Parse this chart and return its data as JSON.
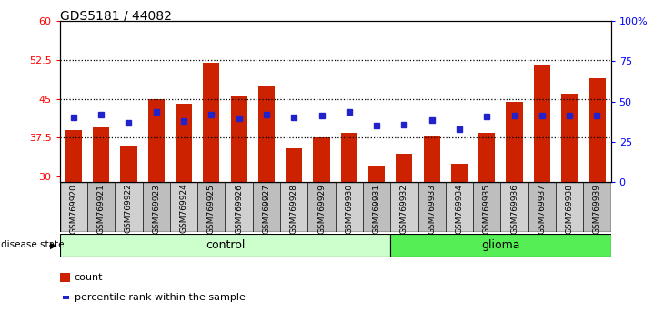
{
  "title": "GDS5181 / 44082",
  "samples": [
    "GSM769920",
    "GSM769921",
    "GSM769922",
    "GSM769923",
    "GSM769924",
    "GSM769925",
    "GSM769926",
    "GSM769927",
    "GSM769928",
    "GSM769929",
    "GSM769930",
    "GSM769931",
    "GSM769932",
    "GSM769933",
    "GSM769934",
    "GSM769935",
    "GSM769936",
    "GSM769937",
    "GSM769938",
    "GSM769939"
  ],
  "bar_heights": [
    39.0,
    39.5,
    36.0,
    45.0,
    44.0,
    52.0,
    45.5,
    47.5,
    35.5,
    37.5,
    38.5,
    32.0,
    34.5,
    38.0,
    32.5,
    38.5,
    44.5,
    51.5,
    46.0,
    49.0
  ],
  "percentile_values": [
    40.0,
    42.0,
    37.0,
    43.5,
    38.0,
    42.0,
    39.5,
    42.0,
    40.0,
    41.0,
    43.5,
    35.0,
    35.5,
    38.5,
    33.0,
    40.5,
    41.0,
    41.5,
    41.0,
    41.5
  ],
  "control_count": 12,
  "glioma_count": 8,
  "ymin": 29,
  "ymax": 60,
  "yticks_left": [
    30,
    37.5,
    45,
    52.5,
    60
  ],
  "ytick_labels_left": [
    "30",
    "37.5",
    "45",
    "52.5",
    "60"
  ],
  "ymin_r": 0,
  "ymax_r": 100,
  "yticks_right": [
    0,
    25,
    50,
    75,
    100
  ],
  "ytick_labels_right": [
    "0",
    "25",
    "50",
    "75",
    "100%"
  ],
  "bar_color": "#CC2200",
  "dot_color": "#2222CC",
  "tick_bg_even": "#D0D0D0",
  "tick_bg_odd": "#BEBEBE",
  "control_color": "#CCFFCC",
  "glioma_color": "#55EE55",
  "dotted_lines": [
    37.5,
    45.0,
    52.5
  ],
  "legend_count_label": "count",
  "legend_pct_label": "percentile rank within the sample",
  "disease_state_label": "disease state",
  "control_label": "control",
  "glioma_label": "glioma"
}
